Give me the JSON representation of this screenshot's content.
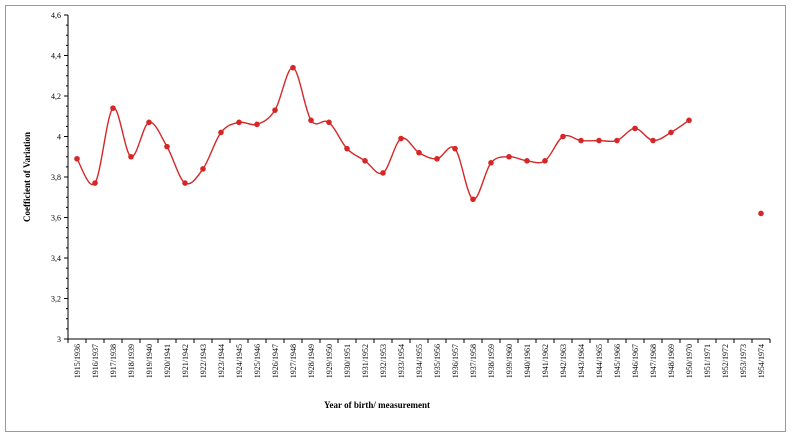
{
  "chart_data": {
    "type": "line",
    "xlabel": "Year of birth/ measurement",
    "ylabel": "Coefficient of Variation",
    "ylim": [
      3,
      4.6
    ],
    "y_ticks": [
      "3",
      "3,2",
      "3,4",
      "3,6",
      "3,8",
      "4",
      "4,2",
      "4,4",
      "4,6"
    ],
    "y_tick_values": [
      3,
      3.2,
      3.4,
      3.6,
      3.8,
      4,
      4.2,
      4.4,
      4.6
    ],
    "grid": false,
    "legend": "none",
    "categories": [
      "1915/1936",
      "1916/1937",
      "1917/1938",
      "1918/1939",
      "1919/1940",
      "1920/1941",
      "1921/1942",
      "1922/1943",
      "1923/1944",
      "1924/1945",
      "1925/1946",
      "1926/1947",
      "1927/1948",
      "1928/1949",
      "1929/1950",
      "1930/1951",
      "1931/1952",
      "1932/1953",
      "1933/1954",
      "1934/1955",
      "1935/1956",
      "1936/1957",
      "1937/1958",
      "1938/1959",
      "1939/1960",
      "1940/1961",
      "1941/1962",
      "1942/1963",
      "1943/1964",
      "1944/1965",
      "1945/1966",
      "1946/1967",
      "1947/1968",
      "1948/1969",
      "1950/1970",
      "1951/1971",
      "1952/1972",
      "1953/1973",
      "1954/1974"
    ],
    "series": [
      {
        "values": [
          3.89,
          3.77,
          4.14,
          3.9,
          4.07,
          3.95,
          3.77,
          3.84,
          4.02,
          4.07,
          4.06,
          4.13,
          4.34,
          4.08,
          4.07,
          3.94,
          3.88,
          3.82,
          3.99,
          3.92,
          3.89,
          3.94,
          3.69,
          3.87,
          3.9,
          3.88,
          3.88,
          4.0,
          3.98,
          3.98,
          3.98,
          4.04,
          3.98,
          4.02,
          4.08,
          null,
          null,
          null,
          3.62
        ],
        "color": "#d62728"
      }
    ]
  }
}
